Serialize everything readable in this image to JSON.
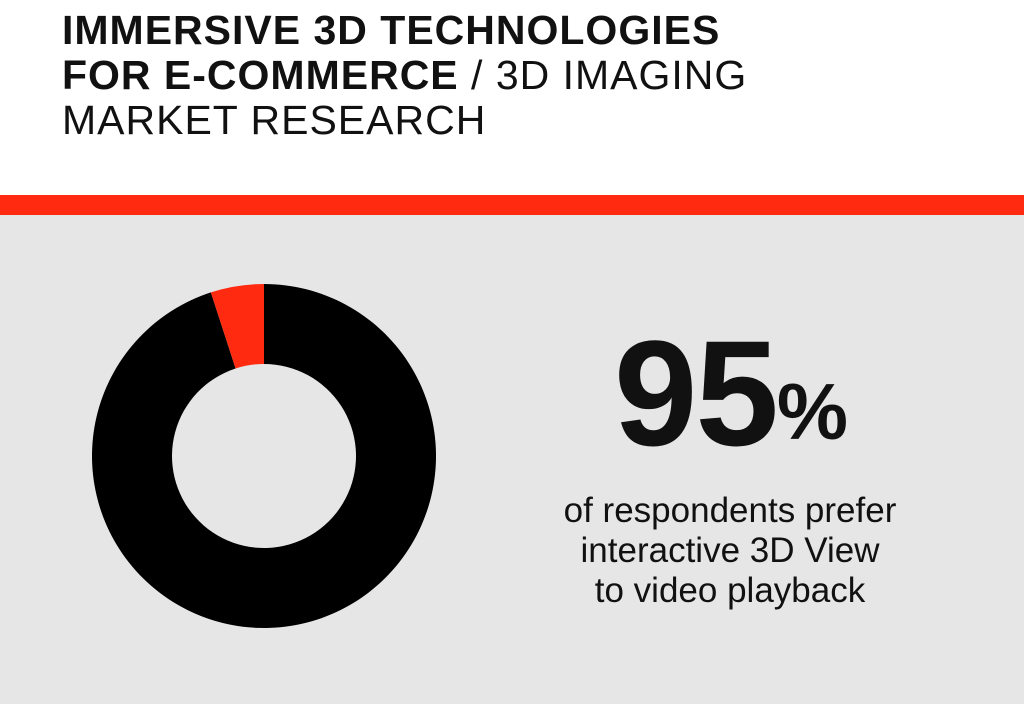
{
  "header": {
    "line1": "IMMERSIVE 3D TECHNOLOGIES",
    "line2_bold": "FOR E-COMMERCE",
    "line2_rest": " / 3D IMAGING",
    "line3": "MARKET RESEARCH"
  },
  "stat": {
    "number": "95",
    "percent_sign": "%",
    "caption_line1": "of respondents prefer",
    "caption_line2": "interactive 3D View",
    "caption_line3": "to video playback"
  },
  "colors": {
    "accent": "#ff2a0f",
    "primary": "#000000",
    "panel": "#e6e6e6"
  },
  "chart_data": {
    "type": "pie",
    "labels": [
      "",
      ""
    ],
    "values": [
      95,
      5
    ],
    "colors": [
      "#000000",
      "#ff2a0f"
    ],
    "donut": true
  }
}
